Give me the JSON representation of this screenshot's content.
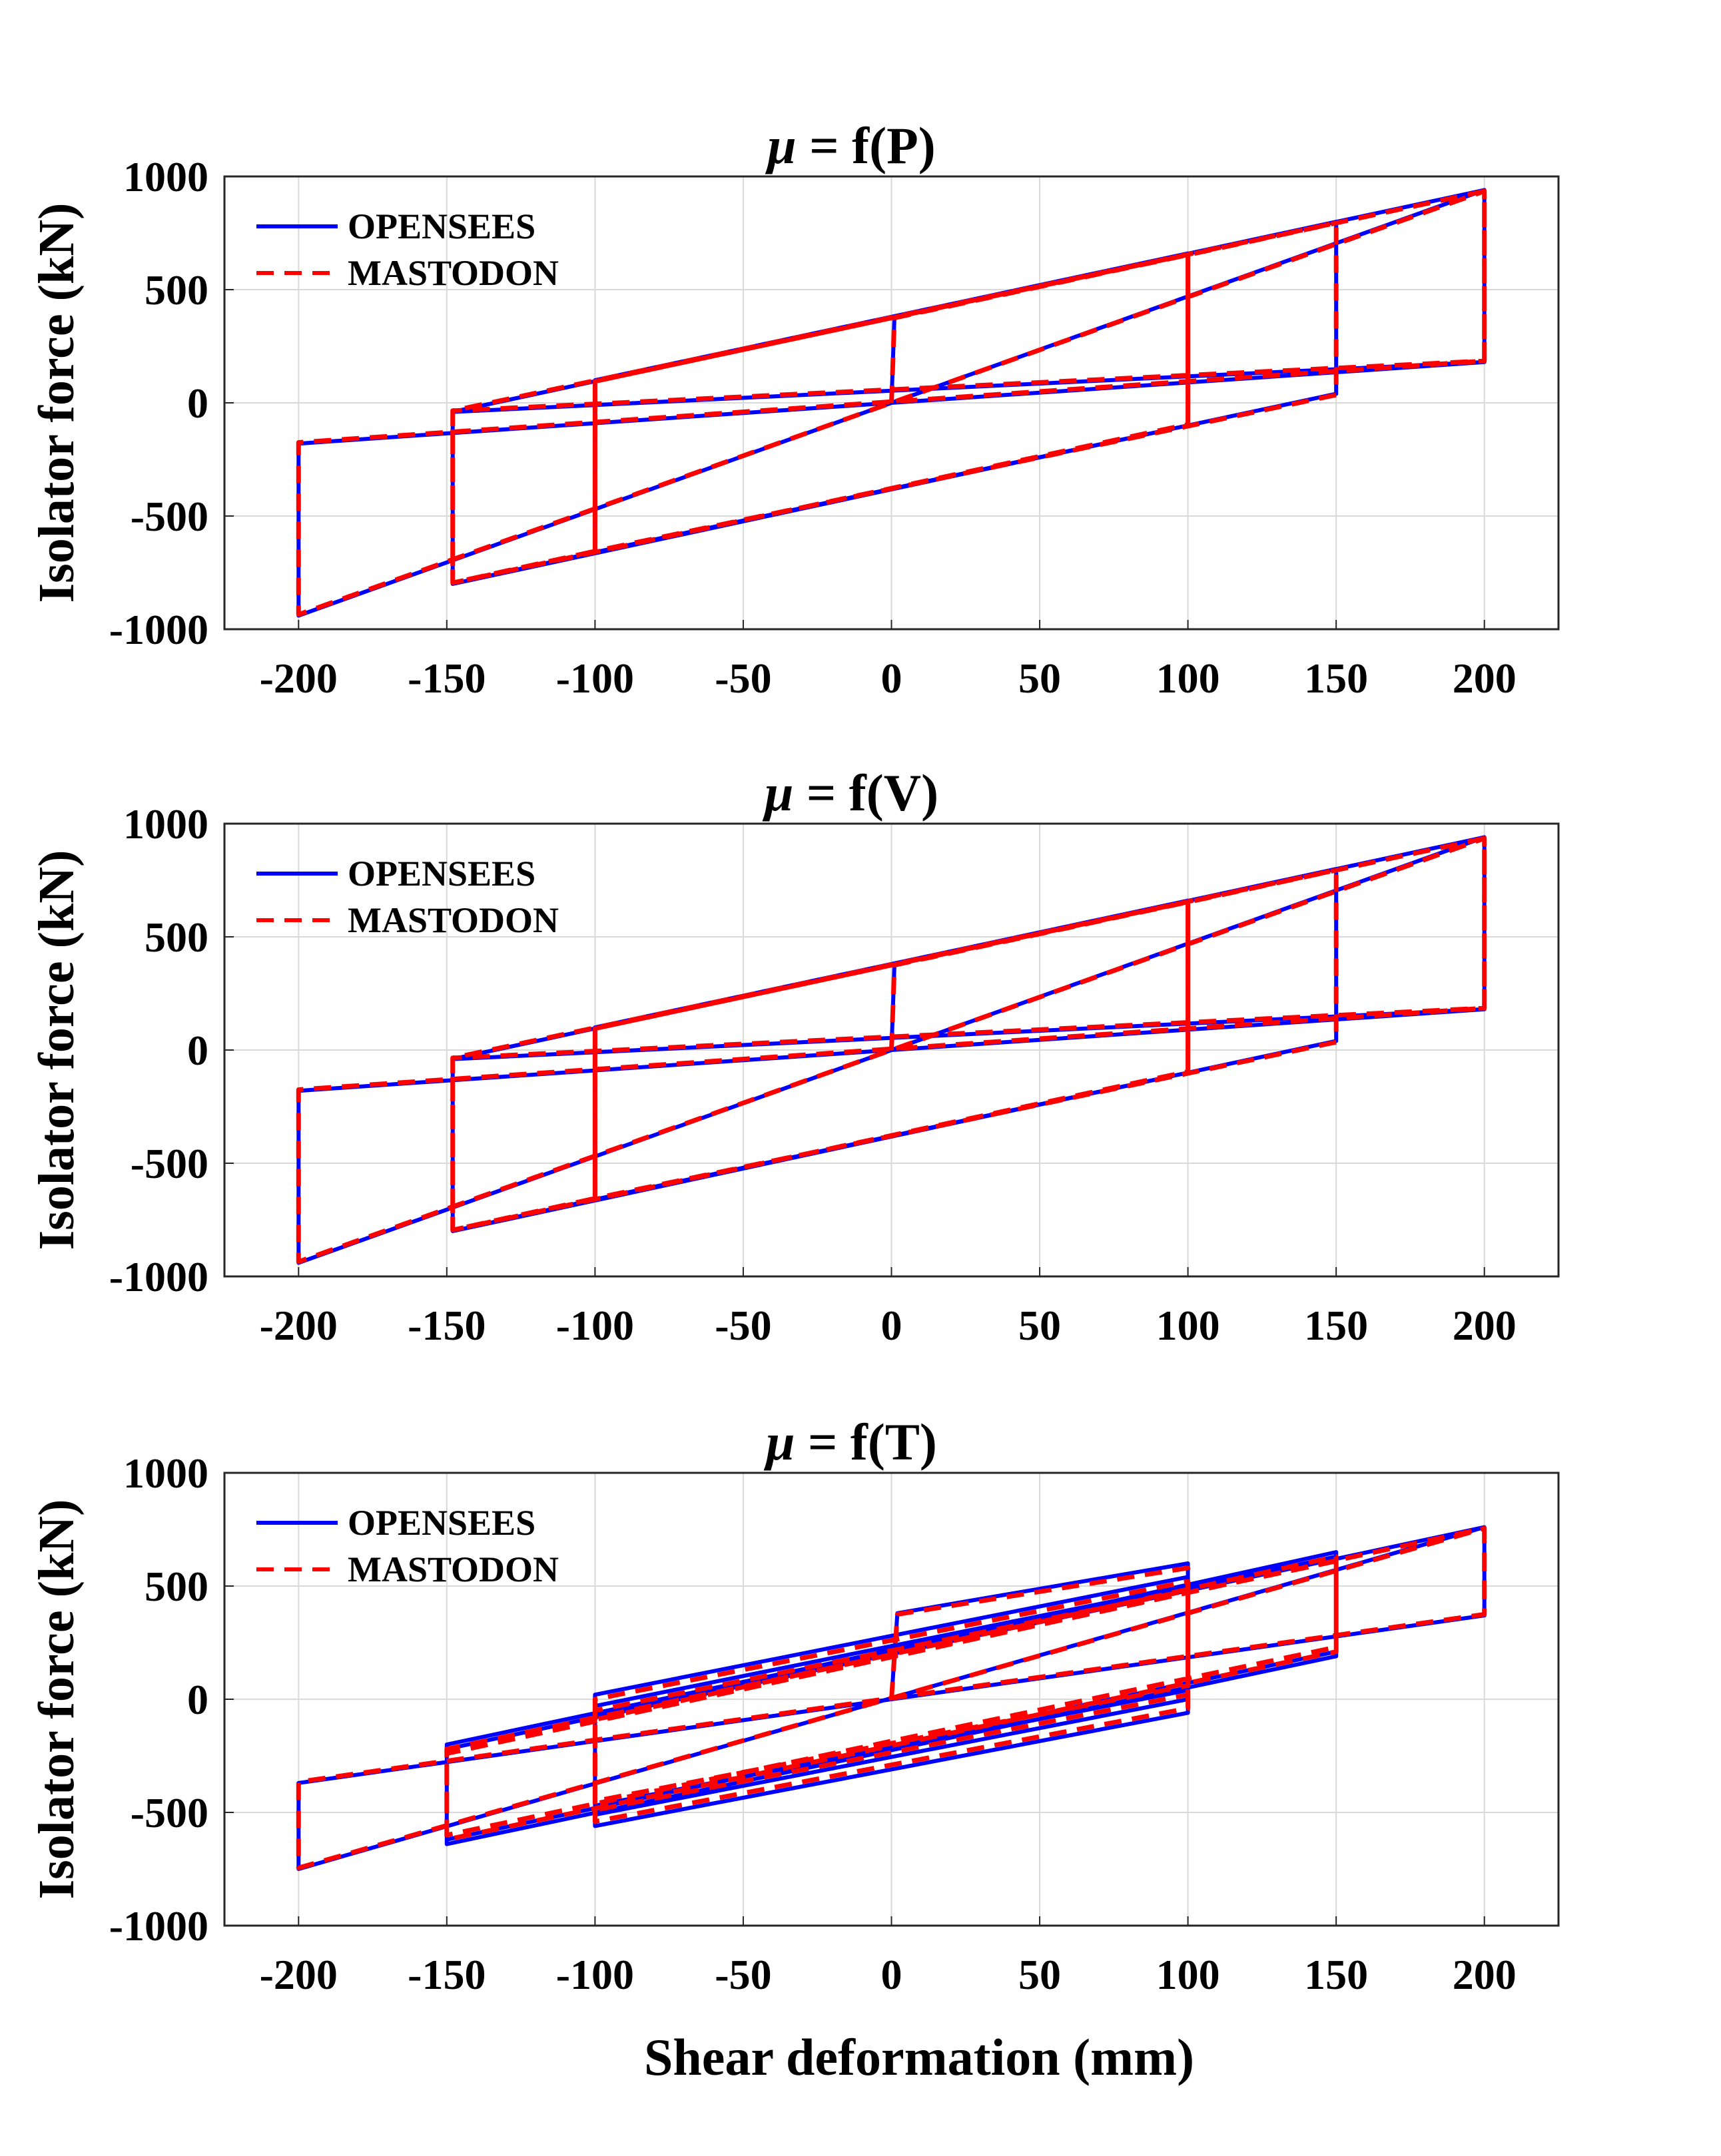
{
  "figure": {
    "xlabel": "Shear deformation (mm)"
  },
  "colors": {
    "opensees": "#0000ff",
    "mastodon": "#ff0000",
    "grid": "#d9d9d9",
    "axis": "#262626"
  },
  "chart_data": [
    {
      "type": "line",
      "title": "μ = f(P)",
      "title_mu": "μ",
      "title_rest": " = f(P)",
      "ylabel": "Isolator force (kN)",
      "xlim": [
        -225,
        225
      ],
      "ylim": [
        -1000,
        1000
      ],
      "xticks": [
        "-200",
        "-150",
        "-100",
        "-50",
        "0",
        "50",
        "100",
        "150",
        "200"
      ],
      "yticks": [
        "1000",
        "500",
        "0",
        "-500",
        "-1000"
      ],
      "grid": true,
      "legend_position": "top-left",
      "series": [
        {
          "name": "OPENSEES",
          "style": "solid",
          "x": [
            0,
            1,
            200,
            200,
            -200,
            -200,
            200,
            200,
            -148,
            -148,
            -100,
            -100,
            100,
            100,
            -148,
            -148,
            150,
            150,
            -100,
            -100,
            100,
            100
          ],
          "y": [
            0,
            380,
            940,
            180,
            -180,
            -940,
            940,
            180,
            -40,
            -800,
            -660,
            100,
            660,
            -100,
            -800,
            -40,
            800,
            40,
            -660,
            100,
            660,
            -100
          ]
        },
        {
          "name": "MASTODON",
          "style": "dashed",
          "x": [
            0,
            1,
            200,
            200,
            -200,
            -200,
            200,
            200,
            -148,
            -148,
            -100,
            -100,
            100,
            100,
            -148,
            -148,
            150,
            150,
            -100,
            -100,
            100,
            100
          ],
          "y": [
            0,
            375,
            935,
            185,
            -175,
            -935,
            935,
            185,
            -35,
            -795,
            -655,
            95,
            655,
            -95,
            -795,
            -35,
            795,
            35,
            -655,
            95,
            655,
            -95
          ]
        }
      ]
    },
    {
      "type": "line",
      "title": "μ = f(V)",
      "title_mu": "μ",
      "title_rest": " = f(V)",
      "ylabel": "Isolator force (kN)",
      "xlim": [
        -225,
        225
      ],
      "ylim": [
        -1000,
        1000
      ],
      "xticks": [
        "-200",
        "-150",
        "-100",
        "-50",
        "0",
        "50",
        "100",
        "150",
        "200"
      ],
      "yticks": [
        "1000",
        "500",
        "0",
        "-500",
        "-1000"
      ],
      "grid": true,
      "legend_position": "top-left",
      "series": [
        {
          "name": "OPENSEES",
          "style": "solid",
          "x": [
            0,
            1,
            200,
            200,
            -200,
            -200,
            200,
            200,
            -148,
            -148,
            -100,
            -100,
            100,
            100,
            -148,
            -148,
            150,
            150,
            -100,
            -100,
            100,
            100
          ],
          "y": [
            0,
            380,
            940,
            180,
            -180,
            -940,
            940,
            180,
            -40,
            -800,
            -660,
            100,
            660,
            -100,
            -800,
            -40,
            800,
            40,
            -660,
            100,
            660,
            -100
          ]
        },
        {
          "name": "MASTODON",
          "style": "dashed",
          "x": [
            0,
            1,
            200,
            200,
            -200,
            -200,
            200,
            200,
            -148,
            -148,
            -100,
            -100,
            100,
            100,
            -148,
            -148,
            150,
            150,
            -100,
            -100,
            100,
            100
          ],
          "y": [
            0,
            375,
            935,
            185,
            -175,
            -935,
            935,
            185,
            -35,
            -795,
            -655,
            95,
            655,
            -95,
            -795,
            -35,
            795,
            35,
            -655,
            95,
            655,
            -95
          ]
        }
      ]
    },
    {
      "type": "line",
      "title": "μ = f(T)",
      "title_mu": "μ",
      "title_rest": " = f(T)",
      "ylabel": "Isolator force (kN)",
      "xlim": [
        -225,
        225
      ],
      "ylim": [
        -1000,
        1000
      ],
      "xticks": [
        "-200",
        "-150",
        "-100",
        "-50",
        "0",
        "50",
        "100",
        "150",
        "200"
      ],
      "yticks": [
        "1000",
        "500",
        "0",
        "-500",
        "-1000"
      ],
      "grid": true,
      "legend_position": "top-left",
      "series": [
        {
          "name": "OPENSEES",
          "style": "solid",
          "x": [
            0,
            2,
            100,
            100,
            -100,
            -100,
            100,
            100,
            -100,
            -100,
            100,
            100,
            -100,
            -100,
            150,
            150,
            -150,
            -150,
            150,
            150,
            -150,
            -150,
            200,
            200,
            -200,
            -200,
            200,
            200
          ],
          "y": [
            0,
            380,
            600,
            -60,
            -560,
            20,
            540,
            0,
            -510,
            -30,
            500,
            40,
            -470,
            -70,
            650,
            190,
            -640,
            -200,
            630,
            210,
            -620,
            -220,
            760,
            370,
            -370,
            -750,
            760,
            370
          ]
        },
        {
          "name": "MASTODON",
          "style": "dashed",
          "x": [
            0,
            2,
            100,
            100,
            -100,
            -100,
            100,
            100,
            -100,
            -100,
            100,
            100,
            -100,
            -100,
            150,
            150,
            -150,
            -150,
            150,
            150,
            -150,
            -150,
            200,
            200,
            -200,
            -200,
            200,
            200
          ],
          "y": [
            0,
            375,
            580,
            -40,
            -540,
            0,
            520,
            20,
            -490,
            -50,
            480,
            60,
            -450,
            -90,
            630,
            210,
            -620,
            -220,
            610,
            230,
            -600,
            -240,
            755,
            375,
            -365,
            -745,
            755,
            375
          ]
        }
      ]
    }
  ]
}
